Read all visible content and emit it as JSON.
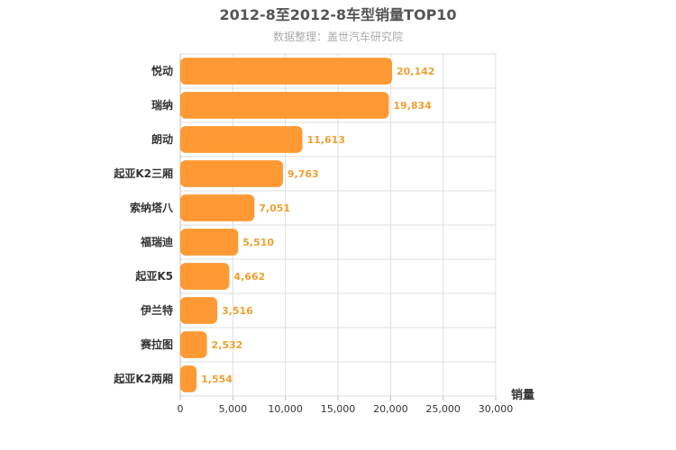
{
  "chart_data": {
    "type": "bar",
    "orientation": "horizontal",
    "title": "2012-8至2012-8车型销量TOP10",
    "subtitle": "数据整理：盖世汽车研究院",
    "categories": [
      "悦动",
      "瑞纳",
      "朗动",
      "起亚K2三厢",
      "索纳塔八",
      "福瑞迪",
      "起亚K5",
      "伊兰特",
      "赛拉图",
      "起亚K2两厢"
    ],
    "values": [
      20142,
      19834,
      11613,
      9763,
      7051,
      5510,
      4662,
      3516,
      2532,
      1554
    ],
    "value_labels": [
      "20,142",
      "19,834",
      "11,613",
      "9,763",
      "7,051",
      "5,510",
      "4,662",
      "3,516",
      "2,532",
      "1,554"
    ],
    "xlabel": "",
    "ylabel": "销量",
    "xlim": [
      0,
      30000
    ],
    "ticks": [
      0,
      5000,
      10000,
      15000,
      20000,
      25000,
      30000
    ],
    "tick_labels": [
      "0",
      "5,000",
      "10,000",
      "15,000",
      "20,000",
      "25,000",
      "30,000"
    ],
    "grid": true,
    "colors": {
      "bar": "#FF9933",
      "value_label": "#F0A030",
      "grid": "#dddddd",
      "title": "#555555",
      "subtitle": "#aaaaaa"
    }
  }
}
